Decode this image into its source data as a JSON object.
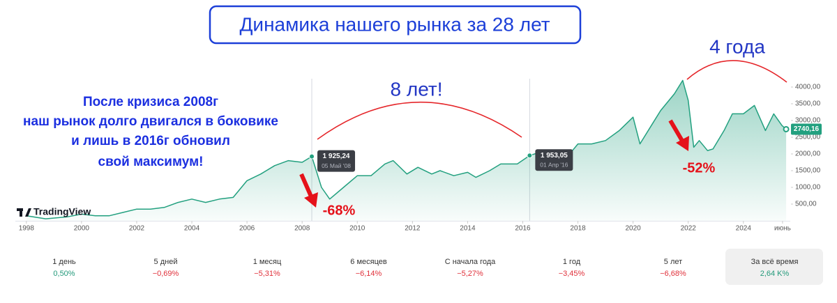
{
  "chart_data": {
    "type": "area",
    "title": "Динамика нашего рынка за 28 лет",
    "x": [
      1998.0,
      1998.7,
      1999.5,
      2000.0,
      2000.5,
      2001.0,
      2001.5,
      2002.0,
      2002.5,
      2003.0,
      2003.5,
      2004.0,
      2004.5,
      2005.0,
      2005.5,
      2006.0,
      2006.5,
      2007.0,
      2007.5,
      2008.0,
      2008.35,
      2008.7,
      2009.0,
      2009.5,
      2010.0,
      2010.5,
      2011.0,
      2011.3,
      2011.8,
      2012.2,
      2012.7,
      2013.0,
      2013.5,
      2014.0,
      2014.3,
      2014.8,
      2015.2,
      2015.8,
      2016.25,
      2016.8,
      2017.3,
      2017.6,
      2018.0,
      2018.5,
      2019.0,
      2019.5,
      2020.0,
      2020.25,
      2020.7,
      2021.0,
      2021.5,
      2021.8,
      2022.0,
      2022.2,
      2022.4,
      2022.7,
      2022.9,
      2023.3,
      2023.6,
      2024.0,
      2024.4,
      2024.8,
      2025.1,
      2025.4,
      2025.55
    ],
    "values": [
      150,
      60,
      120,
      200,
      150,
      150,
      250,
      350,
      350,
      400,
      550,
      650,
      550,
      650,
      700,
      1200,
      1400,
      1650,
      1800,
      1750,
      1925.24,
      1000,
      650,
      1000,
      1350,
      1350,
      1700,
      1800,
      1400,
      1600,
      1400,
      1500,
      1350,
      1450,
      1300,
      1500,
      1700,
      1700,
      1953.05,
      2100,
      2000,
      1900,
      2300,
      2300,
      2400,
      2700,
      3100,
      2300,
      2900,
      3300,
      3800,
      4200,
      3600,
      2200,
      2400,
      2100,
      2150,
      2700,
      3200,
      3200,
      3450,
      2700,
      3200,
      2850,
      2740.16
    ],
    "color": "#22a07f",
    "xlim": [
      1997.6,
      2025.7
    ],
    "ylim": [
      0,
      4300
    ],
    "xticks": [
      1998,
      2000,
      2002,
      2004,
      2006,
      2008,
      2010,
      2012,
      2014,
      2016,
      2018,
      2020,
      2022,
      2024,
      {
        "value": 2025.42,
        "label": "июнь"
      }
    ],
    "yticks": [
      {
        "value": 500,
        "label": "500,00"
      },
      {
        "value": 1000,
        "label": "1000,00"
      },
      {
        "value": 1500,
        "label": "1500,00"
      },
      {
        "value": 2000,
        "label": "2000,00"
      },
      {
        "value": 2500,
        "label": "2500,00"
      },
      {
        "value": 3000,
        "label": "3000,00"
      },
      {
        "value": 3500,
        "label": "3500,00"
      },
      {
        "value": 4000,
        "label": "4000,00"
      }
    ],
    "grid": false,
    "markers": [
      {
        "x": 2008.35,
        "value": 1925.24,
        "value_label": "1 925,24",
        "date": "05 Май '08"
      },
      {
        "x": 2016.25,
        "value": 1953.05,
        "value_label": "1 953,05",
        "date": "01 Апр '16"
      }
    ],
    "last_price": {
      "value": 2740.16,
      "label": "2740,16"
    },
    "logo": "TradingView",
    "annotations": {
      "note": [
        "После кризиса 2008г",
        "наш рынок долго двигался в боковике",
        "и лишь в 2016г обновил",
        "свой максимум!"
      ],
      "span_1": "8 лет!",
      "span_2": "4 года",
      "drop_1": {
        "value": -68,
        "label": "-68%"
      },
      "drop_2": {
        "value": -52,
        "label": "-52%"
      }
    }
  },
  "performance": [
    {
      "period": "1 день",
      "value": 0.5,
      "value_label": "0,50%"
    },
    {
      "period": "5 дней",
      "value": -0.69,
      "value_label": "−0,69%"
    },
    {
      "period": "1 месяц",
      "value": -5.31,
      "value_label": "−5,31%"
    },
    {
      "period": "6 месяцев",
      "value": -6.14,
      "value_label": "−6,14%"
    },
    {
      "period": "С начала года",
      "value": -5.27,
      "value_label": "−5,27%"
    },
    {
      "period": "1 год",
      "value": -3.45,
      "value_label": "−3,45%"
    },
    {
      "period": "5 лет",
      "value": -6.68,
      "value_label": "−6,68%"
    },
    {
      "period": "За всё время",
      "value": 2640,
      "value_label": "2,64 K%"
    }
  ]
}
